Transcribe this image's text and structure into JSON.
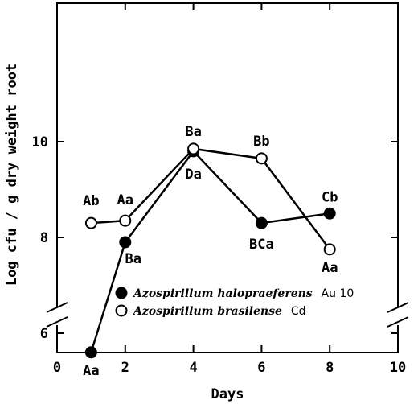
{
  "chart_data": {
    "type": "line",
    "xlabel": "Days",
    "ylabel": "Log cfu / g dry weight root",
    "xlim": [
      0,
      10
    ],
    "ylim": [
      4,
      11
    ],
    "xticks": [
      0,
      2,
      4,
      6,
      8,
      10
    ],
    "yticks": [
      6,
      8,
      10
    ],
    "axis_break": "y-axis below 6",
    "grid": false,
    "legend_position": "bottom-center",
    "series": [
      {
        "name_italic": "Azospirillum halopraeferens",
        "name_strain": "Au 10",
        "marker": "filled-circle",
        "x": [
          1,
          2,
          4,
          6,
          8
        ],
        "y": [
          5.6,
          7.9,
          9.8,
          8.3,
          8.5
        ],
        "labels": [
          "Aa",
          "Ba",
          "Da",
          "BCa",
          "Cb"
        ]
      },
      {
        "name_italic": "Azospirillum brasilense",
        "name_strain": "Cd",
        "marker": "open-circle",
        "x": [
          1,
          2,
          4,
          6,
          8
        ],
        "y": [
          8.3,
          8.35,
          9.85,
          9.65,
          7.75
        ],
        "labels": [
          "Ab",
          "Aa",
          "Ba",
          "Bb",
          "Aa"
        ]
      }
    ]
  }
}
